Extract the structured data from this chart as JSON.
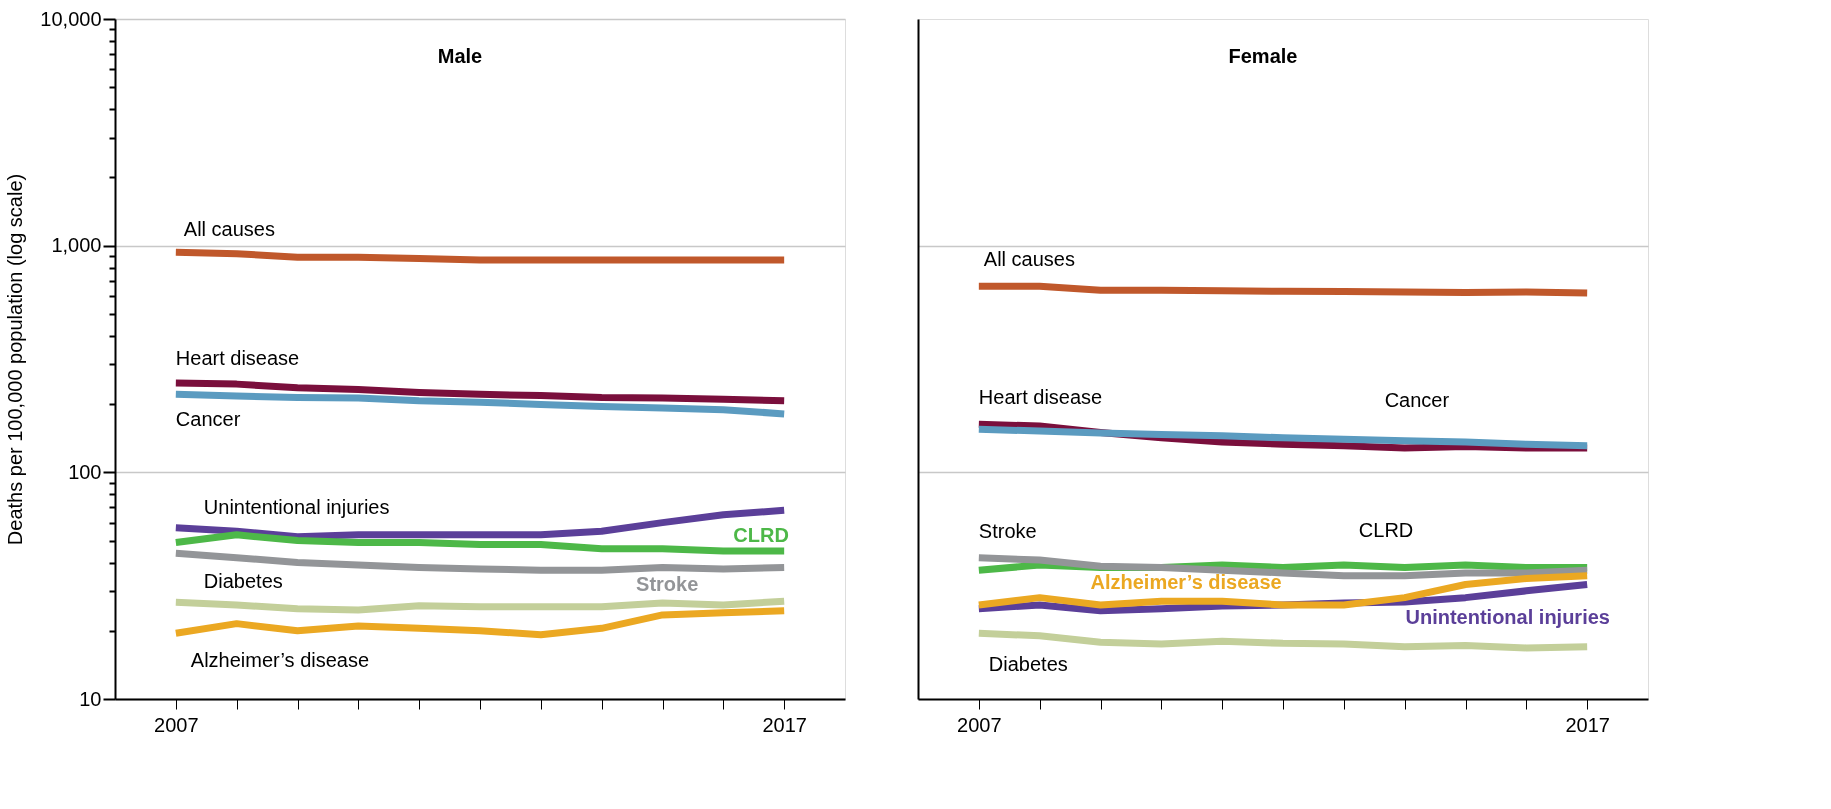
{
  "chart_data": [
    {
      "type": "line",
      "title": "Male",
      "ylabel": "Deaths per 100,000 population (log scale)",
      "log": "y",
      "grid": "y",
      "legend": false,
      "line_style": "solid",
      "marker": "none",
      "x": [
        2007,
        2008,
        2009,
        2010,
        2011,
        2012,
        2013,
        2014,
        2015,
        2016,
        2017
      ],
      "xlim": [
        2006,
        2018
      ],
      "xticks": [
        {
          "value": 2007,
          "label": "2007"
        },
        {
          "value": 2008,
          "label": null
        },
        {
          "value": 2009,
          "label": null
        },
        {
          "value": 2010,
          "label": null
        },
        {
          "value": 2011,
          "label": null
        },
        {
          "value": 2012,
          "label": null
        },
        {
          "value": 2013,
          "label": null
        },
        {
          "value": 2014,
          "label": null
        },
        {
          "value": 2015,
          "label": null
        },
        {
          "value": 2016,
          "label": null
        },
        {
          "value": 2017,
          "label": "2017"
        }
      ],
      "ylim": [
        10,
        10000
      ],
      "yticks": [
        10,
        {
          "value": 20,
          "label": null
        },
        {
          "value": 30,
          "label": null
        },
        {
          "value": 40,
          "label": null
        },
        {
          "value": 50,
          "label": null
        },
        {
          "value": 60,
          "label": null
        },
        {
          "value": 70,
          "label": null
        },
        {
          "value": 80,
          "label": null
        },
        {
          "value": 90,
          "label": null
        },
        100,
        {
          "value": 200,
          "label": null
        },
        {
          "value": 300,
          "label": null
        },
        {
          "value": 400,
          "label": null
        },
        {
          "value": 500,
          "label": null
        },
        {
          "value": 600,
          "label": null
        },
        {
          "value": 700,
          "label": null
        },
        {
          "value": 800,
          "label": null
        },
        {
          "value": 900,
          "label": null
        },
        {
          "value": 1000,
          "label": "1,000"
        },
        {
          "value": 2000,
          "label": null
        },
        {
          "value": 3000,
          "label": null
        },
        {
          "value": 4000,
          "label": null
        },
        {
          "value": 5000,
          "label": null
        },
        {
          "value": 6000,
          "label": null
        },
        {
          "value": 7000,
          "label": null
        },
        {
          "value": 8000,
          "label": null
        },
        {
          "value": 9000,
          "label": null
        },
        {
          "value": 10000,
          "label": "10,000"
        }
      ],
      "series": [
        {
          "name": "All causes",
          "color": "#c0582b",
          "values": [
            936,
            922,
            890,
            890,
            878,
            865,
            865,
            865,
            865,
            865,
            865
          ]
        },
        {
          "name": "Heart disease",
          "color": "#7a0f3c",
          "values": [
            248,
            245,
            236,
            232,
            225,
            221,
            218,
            214,
            213,
            210,
            207
          ]
        },
        {
          "name": "Cancer",
          "color": "#5b9bc0",
          "values": [
            221,
            217,
            214,
            213,
            207,
            204,
            199,
            195,
            192,
            189,
            181
          ]
        },
        {
          "name": "Unintentional injuries",
          "color": "#5b3f99",
          "values": [
            57,
            55,
            52,
            53,
            53,
            53,
            53,
            55,
            60,
            65,
            68
          ]
        },
        {
          "name": "CLRD",
          "color": "#4db848",
          "values": [
            49,
            53,
            50,
            49,
            49,
            48,
            48,
            46,
            46,
            45,
            45
          ]
        },
        {
          "name": "Stroke",
          "color": "#939598",
          "values": [
            44,
            42,
            40,
            39,
            38,
            37.5,
            37,
            37,
            38,
            37.5,
            38
          ]
        },
        {
          "name": "Diabetes",
          "color": "#c3cf9a",
          "values": [
            26.7,
            26,
            25,
            24.7,
            25.8,
            25.5,
            25.5,
            25.5,
            26.5,
            26,
            27
          ]
        },
        {
          "name": "Alzheimer’s disease",
          "color": "#eba822",
          "values": [
            19.5,
            21.5,
            20,
            21,
            20.5,
            20,
            19.2,
            20.5,
            23.5,
            24,
            24.5
          ]
        }
      ]
    },
    {
      "type": "line",
      "title": "Female",
      "log": "y",
      "grid": "y",
      "legend": false,
      "line_style": "solid",
      "marker": "none",
      "tick_labels": "x",
      "x": [
        2007,
        2008,
        2009,
        2010,
        2011,
        2012,
        2013,
        2014,
        2015,
        2016,
        2017
      ],
      "xlim": [
        2006,
        2018
      ],
      "xticks": [
        {
          "value": 2007,
          "label": "2007"
        },
        {
          "value": 2008,
          "label": null
        },
        {
          "value": 2009,
          "label": null
        },
        {
          "value": 2010,
          "label": null
        },
        {
          "value": 2011,
          "label": null
        },
        {
          "value": 2012,
          "label": null
        },
        {
          "value": 2013,
          "label": null
        },
        {
          "value": 2014,
          "label": null
        },
        {
          "value": 2015,
          "label": null
        },
        {
          "value": 2016,
          "label": null
        },
        {
          "value": 2017,
          "label": "2017"
        }
      ],
      "ylim": [
        10,
        10000
      ],
      "yticks": [
        {
          "value": 100,
          "label": null
        },
        {
          "value": 1000,
          "label": null
        }
      ],
      "series": [
        {
          "name": "All causes",
          "color": "#c0582b",
          "values": [
            662,
            662,
            636,
            636,
            633,
            629,
            627,
            624,
            622,
            625,
            619
          ]
        },
        {
          "name": "Heart disease",
          "color": "#7a0f3c",
          "values": [
            163,
            160,
            150,
            142,
            136,
            133,
            131,
            128,
            130,
            128,
            128
          ]
        },
        {
          "name": "Cancer",
          "color": "#5b9bc0",
          "values": [
            155,
            152,
            149,
            147,
            145,
            142,
            140,
            138,
            136,
            133,
            131
          ]
        },
        {
          "name": "Unintentional injuries",
          "color": "#5b3f99",
          "values": [
            25,
            26,
            24.5,
            25,
            25.7,
            26,
            26.5,
            26.8,
            28,
            30,
            32
          ]
        },
        {
          "name": "CLRD",
          "color": "#4db848",
          "values": [
            37,
            39,
            38,
            38,
            39,
            38,
            39,
            38,
            39,
            38,
            38
          ]
        },
        {
          "name": "Stroke",
          "color": "#939598",
          "values": [
            42,
            41,
            38.5,
            38,
            37,
            36,
            35,
            35,
            36,
            36,
            37
          ]
        },
        {
          "name": "Diabetes",
          "color": "#c3cf9a",
          "values": [
            19.5,
            19,
            17.8,
            17.5,
            18,
            17.6,
            17.5,
            17,
            17.2,
            16.8,
            17
          ]
        },
        {
          "name": "Alzheimer’s disease",
          "color": "#eba822",
          "values": [
            26,
            28,
            26,
            27,
            27,
            26,
            26,
            28,
            32,
            34,
            35
          ]
        }
      ]
    }
  ]
}
